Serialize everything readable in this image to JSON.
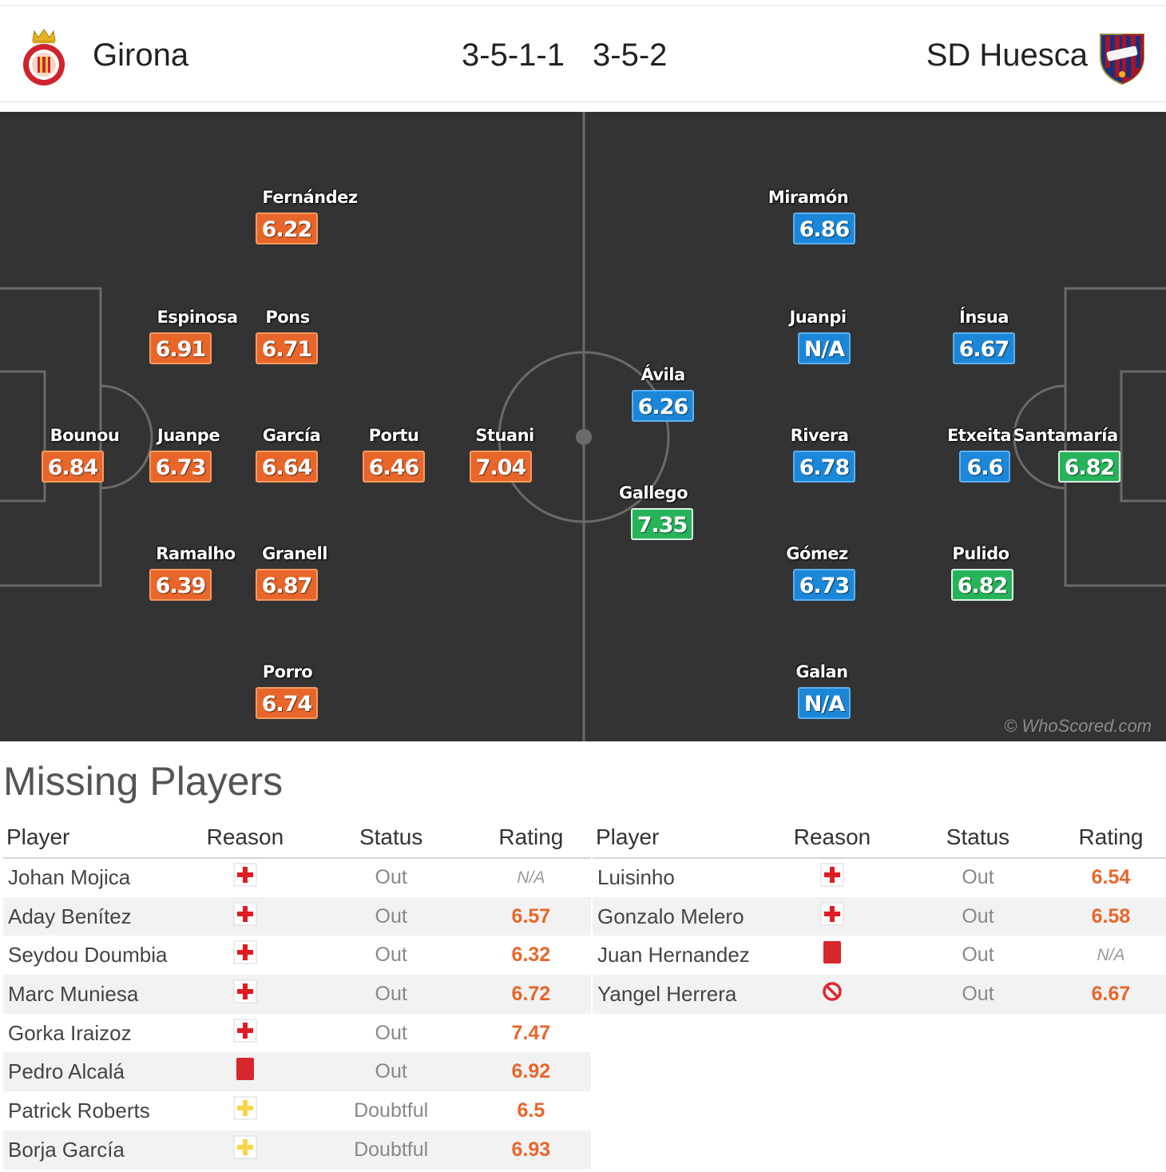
{
  "header": {
    "home_team": "Girona",
    "away_team": "SD Huesca",
    "home_formation": "3-5-1-1",
    "away_formation": "3-5-2",
    "home_badge_icon": "girona-crest-icon",
    "away_badge_icon": "huesca-crest-icon"
  },
  "pitch": {
    "watermark": "© WhoScored.com",
    "home_color": "#e8662a",
    "away_color": "#1b87d9",
    "best_color": "#27b35a",
    "home_players": [
      {
        "name": "Bounou",
        "rating": "6.84"
      },
      {
        "name": "Fernández",
        "rating": "6.22"
      },
      {
        "name": "Espinosa",
        "rating": "6.91"
      },
      {
        "name": "Pons",
        "rating": "6.71"
      },
      {
        "name": "Juanpe",
        "rating": "6.73"
      },
      {
        "name": "García",
        "rating": "6.64"
      },
      {
        "name": "Ramalho",
        "rating": "6.39"
      },
      {
        "name": "Granell",
        "rating": "6.87"
      },
      {
        "name": "Porro",
        "rating": "6.74"
      },
      {
        "name": "Portu",
        "rating": "6.46"
      },
      {
        "name": "Stuani",
        "rating": "7.04"
      }
    ],
    "away_players": [
      {
        "name": "Ávila",
        "rating": "6.26"
      },
      {
        "name": "Gallego",
        "rating": "7.35"
      },
      {
        "name": "Miramón",
        "rating": "6.86"
      },
      {
        "name": "Juanpi",
        "rating": "N/A"
      },
      {
        "name": "Rivera",
        "rating": "6.78"
      },
      {
        "name": "Gómez",
        "rating": "6.73"
      },
      {
        "name": "Galan",
        "rating": "N/A"
      },
      {
        "name": "Ínsua",
        "rating": "6.67"
      },
      {
        "name": "Etxeita",
        "rating": "6.6"
      },
      {
        "name": "Pulido",
        "rating": "6.82"
      },
      {
        "name": "Santamaría",
        "rating": "6.82"
      }
    ]
  },
  "missing": {
    "title": "Missing Players",
    "columns": [
      "Player",
      "Reason",
      "Status",
      "Rating"
    ],
    "home": [
      {
        "player": "Johan Mojica",
        "reason": "injury-icon",
        "status": "Out",
        "rating": "N/A"
      },
      {
        "player": "Aday Benítez",
        "reason": "injury-icon",
        "status": "Out",
        "rating": "6.57"
      },
      {
        "player": "Seydou Doumbia",
        "reason": "injury-icon",
        "status": "Out",
        "rating": "6.32"
      },
      {
        "player": "Marc Muniesa",
        "reason": "injury-icon",
        "status": "Out",
        "rating": "6.72"
      },
      {
        "player": "Gorka Iraizoz",
        "reason": "injury-icon",
        "status": "Out",
        "rating": "7.47"
      },
      {
        "player": "Pedro Alcalá",
        "reason": "red-card-icon",
        "status": "Out",
        "rating": "6.92"
      },
      {
        "player": "Patrick Roberts",
        "reason": "doubtful-icon",
        "status": "Doubtful",
        "rating": "6.5"
      },
      {
        "player": "Borja García",
        "reason": "doubtful-icon",
        "status": "Doubtful",
        "rating": "6.93"
      }
    ],
    "away": [
      {
        "player": "Luisinho",
        "reason": "injury-icon",
        "status": "Out",
        "rating": "6.54"
      },
      {
        "player": "Gonzalo Melero",
        "reason": "injury-icon",
        "status": "Out",
        "rating": "6.58"
      },
      {
        "player": "Juan Hernandez",
        "reason": "red-card-icon",
        "status": "Out",
        "rating": "N/A"
      },
      {
        "player": "Yangel Herrera",
        "reason": "ineligible-icon",
        "status": "Out",
        "rating": "6.67"
      }
    ]
  }
}
